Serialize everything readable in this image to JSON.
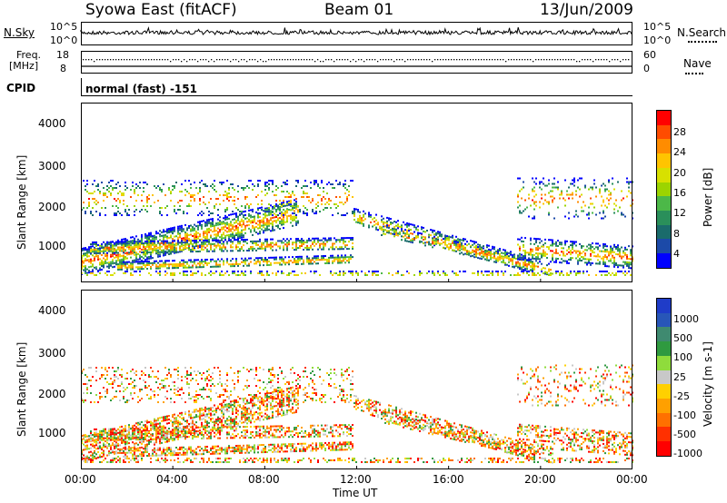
{
  "header": {
    "station": "Syowa East (fitACF)",
    "beam": "Beam 01",
    "date": "13/Jun/2009"
  },
  "top_panels": {
    "nsky_label": "N.Sky",
    "nsky_ticks": [
      "10^5",
      "10^0"
    ],
    "nsearch_label": "N.Search",
    "nsearch_ticks": [
      "10^5",
      "10^0"
    ],
    "freq_label_line1": "Freq.",
    "freq_label_line2": "[MHz]",
    "freq_ticks": [
      "18",
      "8"
    ],
    "nave_label": "Nave",
    "nave_ticks": [
      "60",
      "0"
    ],
    "cpid_label": "CPID",
    "cpid_value": "normal (fast) -151"
  },
  "chart_data": [
    {
      "type": "heatmap",
      "panel": "power",
      "ylabel": "Slant Range [km]",
      "yticks": [
        "4000",
        "3000",
        "2000",
        "1000"
      ],
      "ylim": [
        180,
        4500
      ],
      "colorbar_label": "Power [dB]",
      "colorbar_ticks": [
        "28",
        "24",
        "20",
        "16",
        "12",
        "8",
        "4"
      ],
      "colorbar_colors": [
        "#ff0000",
        "#ff4c00",
        "#ff8c00",
        "#ffc400",
        "#d8e000",
        "#9cd400",
        "#4cb848",
        "#2a8f5a",
        "#1a6b6b",
        "#1c4aa8",
        "#0000ff"
      ]
    },
    {
      "type": "heatmap",
      "panel": "velocity",
      "ylabel": "Slant Range [km]",
      "yticks": [
        "4000",
        "3000",
        "2000",
        "1000"
      ],
      "ylim": [
        180,
        4500
      ],
      "colorbar_label": "Velocity [m s-1]",
      "colorbar_ticks": [
        "1000",
        "500",
        "100",
        "25",
        "-25",
        "-100",
        "-500",
        "-1000"
      ],
      "colorbar_colors": [
        "#1f3cc8",
        "#2856b8",
        "#3f8a70",
        "#2f9a40",
        "#8fdc3c",
        "#c8c8c8",
        "#ffd000",
        "#ffa000",
        "#ff7000",
        "#ff3000",
        "#ff0000"
      ]
    }
  ],
  "x_axis": {
    "ticks": [
      "00:00",
      "04:00",
      "08:00",
      "12:00",
      "16:00",
      "20:00",
      "00:00"
    ],
    "label": "Time UT"
  }
}
